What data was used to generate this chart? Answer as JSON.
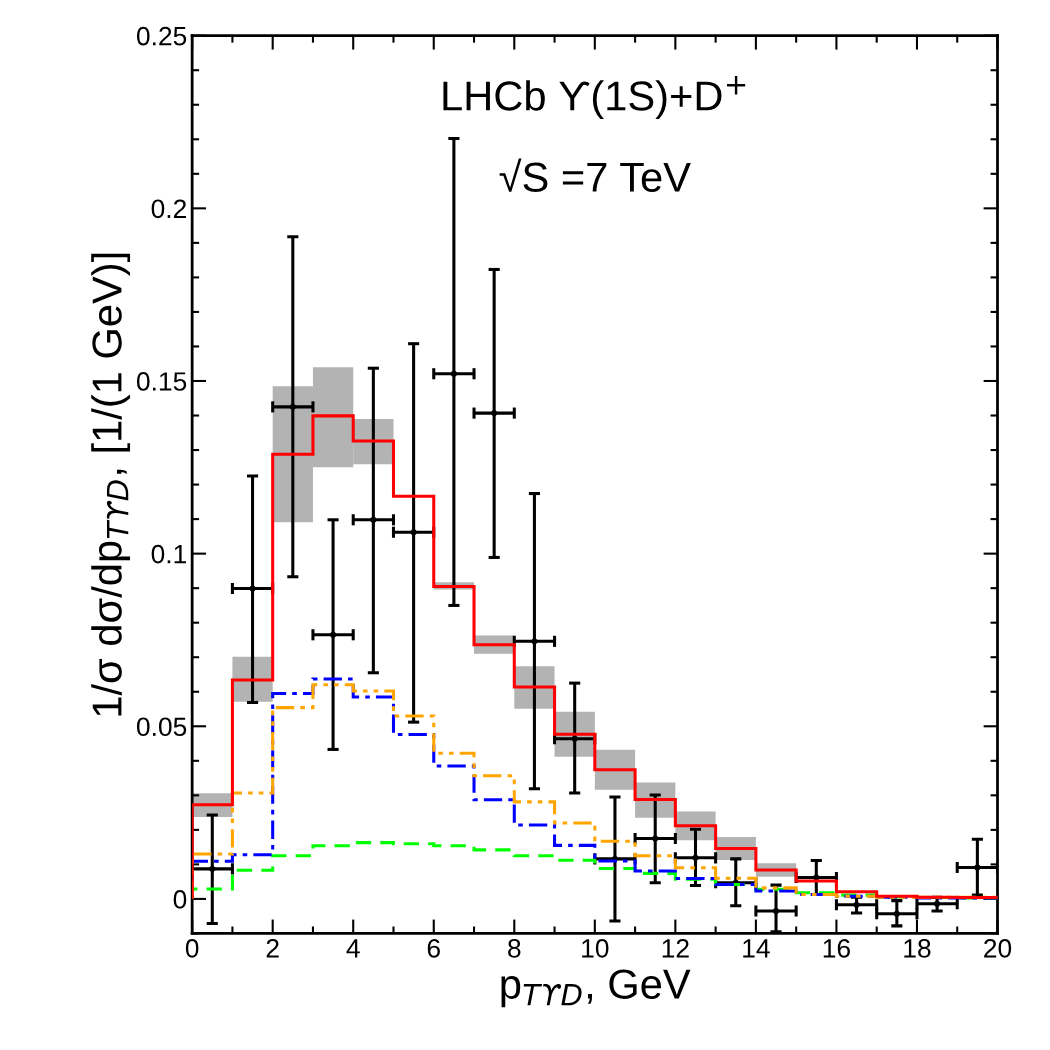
{
  "chart_data": {
    "type": "histogram",
    "xlabel": "p$_{TϒD}$, GeV",
    "ylabel": "1/σ dσ/dp$_{TϒD}$, [1/(1 GeV)]",
    "annotations": [
      "LHCb ϒ(1S)+D$^{+}$",
      "√S =7 TeV"
    ],
    "bins": [
      0,
      1,
      2,
      3,
      4,
      5,
      6,
      7,
      8,
      9,
      10,
      11,
      12,
      13,
      14,
      15,
      16,
      17,
      18,
      19,
      20
    ],
    "xlim": [
      0,
      20
    ],
    "xticks": [
      0,
      2,
      4,
      6,
      8,
      10,
      12,
      14,
      16,
      18,
      20
    ],
    "ylim": [
      -0.01,
      0.25
    ],
    "yticks": [
      {
        "value": 0,
        "label": "0"
      },
      0.05,
      0.1,
      0.15,
      0.2,
      0.25
    ],
    "grid": false,
    "series": [
      {
        "type": "bar",
        "color": "#b3b3b3",
        "x": [
          0.5,
          1.5,
          2.5,
          3.5,
          4.5,
          5.5,
          6.5,
          7.5,
          8.5,
          9.5,
          10.5,
          11.5,
          12.5,
          13.5,
          14.5
        ],
        "base": [
          0.0237,
          0.0571,
          0.1091,
          0.125,
          0.1259,
          null,
          0.0896,
          0.071,
          0.0551,
          0.0412,
          0.0316,
          0.0235,
          0.017,
          0.0113,
          0.0064
        ],
        "values": [
          0.0069,
          0.013,
          0.0394,
          0.029,
          0.0131,
          null,
          0.0021,
          0.0053,
          0.0123,
          0.013,
          0.0116,
          0.0102,
          0.0083,
          0.0066,
          0.0039
        ]
      },
      {
        "color": "#00ff00",
        "line_style": "dashed",
        "values": [
          0.0029,
          0.0083,
          0.0125,
          0.0154,
          0.0163,
          0.016,
          0.0154,
          0.0142,
          0.0125,
          0.0112,
          0.0088,
          0.0074,
          0.0057,
          0.0042,
          0.0028,
          0.0018,
          0.0011,
          0.0006,
          0.0004,
          0.0003
        ]
      },
      {
        "color": "#0000ff",
        "line_style": "dashdot",
        "values": [
          0.0109,
          0.0128,
          0.0595,
          0.0637,
          0.0585,
          0.0476,
          0.0385,
          0.0287,
          0.0214,
          0.0155,
          0.011,
          0.0081,
          0.0059,
          0.0042,
          0.0023,
          0.0013,
          0.0008,
          0.0005,
          0.0003,
          0.0003
        ]
      },
      {
        "color": "#ffa500",
        "line_style": "dashdotdot",
        "values": [
          0.013,
          0.0307,
          0.0554,
          0.062,
          0.0602,
          0.053,
          0.0422,
          0.0357,
          0.0281,
          0.022,
          0.0167,
          0.0125,
          0.009,
          0.006,
          0.0032,
          0.0013,
          0.0008,
          0.0005,
          0.0005,
          0.0005
        ]
      },
      {
        "color": "#ff0000",
        "line_style": "solid",
        "values": [
          0.0273,
          0.0634,
          0.1288,
          0.1399,
          0.1326,
          0.1166,
          0.0905,
          0.0736,
          0.0614,
          0.0477,
          0.0374,
          0.0288,
          0.0212,
          0.0146,
          0.0084,
          0.0052,
          0.0021,
          0.0008,
          0.0005,
          0.0004
        ]
      },
      {
        "type": "scatter",
        "color": "#000000",
        "marker": "circle",
        "x": [
          0.5,
          1.5,
          2.5,
          3.5,
          4.5,
          5.5,
          6.5,
          7.5,
          8.5,
          9.5,
          10.5,
          11.5,
          12.5,
          13.5,
          14.5,
          15.5,
          16.5,
          17.5,
          18.5,
          19.5
        ],
        "values": [
          0.0087,
          0.0899,
          0.1425,
          0.0765,
          0.1098,
          0.1062,
          0.1521,
          0.1407,
          0.0746,
          0.0464,
          0.0116,
          0.0175,
          0.0119,
          0.0047,
          -0.0035,
          0.0062,
          -0.0017,
          -0.0043,
          -0.0014,
          0.0091
        ],
        "errors": [
          [
            -0.0071,
            0.0243
          ],
          [
            0.0569,
            0.1225
          ],
          [
            0.0933,
            0.1918
          ],
          [
            0.0433,
            0.1098
          ],
          [
            0.0655,
            0.1537
          ],
          [
            0.0512,
            0.1608
          ],
          [
            0.085,
            0.2202
          ],
          [
            0.0989,
            0.1823
          ],
          [
            0.0319,
            0.1174
          ],
          [
            0.0307,
            0.0625
          ],
          [
            -0.0064,
            0.0295
          ],
          [
            0.0047,
            0.0301
          ],
          [
            0.0039,
            0.0202
          ],
          [
            -0.002,
            0.0116
          ],
          [
            -0.0095,
            0.004
          ],
          [
            0.0013,
            0.0111
          ],
          [
            -0.0041,
            0.0005
          ],
          [
            -0.0078,
            -0.0005
          ],
          [
            -0.0035,
            0.0005
          ],
          [
            0.0011,
            0.0173
          ]
        ],
        "xerrors": [
          0.5,
          0.5,
          0.5,
          0.5,
          0.5,
          0.5,
          0.5,
          0.5,
          0.5,
          0.5,
          0.5,
          0.5,
          0.5,
          0.5,
          0.5,
          0.5,
          0.5,
          0.5,
          0.5,
          0.5
        ]
      }
    ]
  }
}
